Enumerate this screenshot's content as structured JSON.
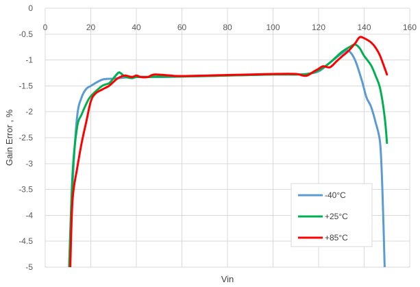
{
  "chart_data": {
    "type": "line",
    "xlabel": "Vin",
    "ylabel": "Gain Error , %",
    "xlim": [
      0,
      160
    ],
    "ylim": [
      -5,
      0
    ],
    "x_ticks": [
      0,
      20,
      40,
      60,
      80,
      100,
      120,
      140,
      160
    ],
    "y_ticks": [
      0,
      -0.5,
      -1,
      -1.5,
      -2,
      -2.5,
      -3,
      -3.5,
      -4,
      -4.5,
      -5
    ],
    "x_tick_labels": [
      "0",
      "20",
      "40",
      "60",
      "80",
      "100",
      "120",
      "140",
      "160"
    ],
    "y_tick_labels": [
      "0",
      "-0.5",
      "-1",
      "-1.5",
      "-2",
      "-2.5",
      "-3",
      "-3.5",
      "-4",
      "-4.5",
      "-5"
    ],
    "grid": true,
    "legend_position": "bottom-right",
    "series": [
      {
        "name": "-40°C",
        "color": "#5b9bd5",
        "x": [
          10.5,
          12,
          14,
          16,
          18,
          20,
          25,
          30,
          35,
          40,
          50,
          60,
          80,
          100,
          110,
          115,
          120,
          125,
          130,
          133,
          136,
          139,
          141,
          143,
          145,
          147,
          148,
          149
        ],
        "y": [
          -5,
          -3.4,
          -2.1,
          -1.72,
          -1.56,
          -1.5,
          -1.38,
          -1.36,
          -1.34,
          -1.32,
          -1.33,
          -1.32,
          -1.3,
          -1.28,
          -1.28,
          -1.27,
          -1.22,
          -1.05,
          -0.88,
          -0.82,
          -1.0,
          -1.4,
          -1.72,
          -1.9,
          -2.2,
          -2.6,
          -3.5,
          -5
        ]
      },
      {
        "name": "+25°C",
        "color": "#00b050",
        "x": [
          10.5,
          12,
          14,
          16,
          18,
          20,
          25,
          28,
          30,
          32,
          33,
          35,
          38,
          40,
          45,
          50,
          60,
          80,
          100,
          110,
          115,
          120,
          125,
          130,
          134,
          136,
          138,
          140,
          143,
          145,
          147,
          149,
          150
        ],
        "y": [
          -5,
          -3.2,
          -2.3,
          -2.05,
          -1.85,
          -1.7,
          -1.5,
          -1.45,
          -1.35,
          -1.25,
          -1.25,
          -1.32,
          -1.35,
          -1.33,
          -1.33,
          -1.32,
          -1.32,
          -1.3,
          -1.28,
          -1.28,
          -1.27,
          -1.2,
          -1.05,
          -0.85,
          -0.74,
          -0.7,
          -0.77,
          -0.92,
          -1.1,
          -1.3,
          -1.55,
          -2.1,
          -2.6
        ]
      },
      {
        "name": "+85°C",
        "color": "#ff0000",
        "x": [
          11,
          12,
          14,
          16,
          18,
          20,
          22,
          25,
          28,
          30,
          32,
          35,
          38,
          40,
          42,
          45,
          48,
          55,
          60,
          80,
          100,
          110,
          113,
          115,
          118,
          120,
          122,
          125,
          128,
          130,
          133,
          136,
          138,
          140,
          143,
          145,
          147,
          150
        ],
        "y": [
          -5,
          -3.7,
          -3.1,
          -2.6,
          -2.2,
          -1.8,
          -1.65,
          -1.57,
          -1.5,
          -1.42,
          -1.35,
          -1.3,
          -1.33,
          -1.3,
          -1.33,
          -1.33,
          -1.28,
          -1.3,
          -1.31,
          -1.29,
          -1.27,
          -1.27,
          -1.3,
          -1.3,
          -1.22,
          -1.17,
          -1.12,
          -1.14,
          -1.02,
          -0.94,
          -0.83,
          -0.68,
          -0.56,
          -0.58,
          -0.66,
          -0.76,
          -0.92,
          -1.28
        ]
      }
    ]
  }
}
